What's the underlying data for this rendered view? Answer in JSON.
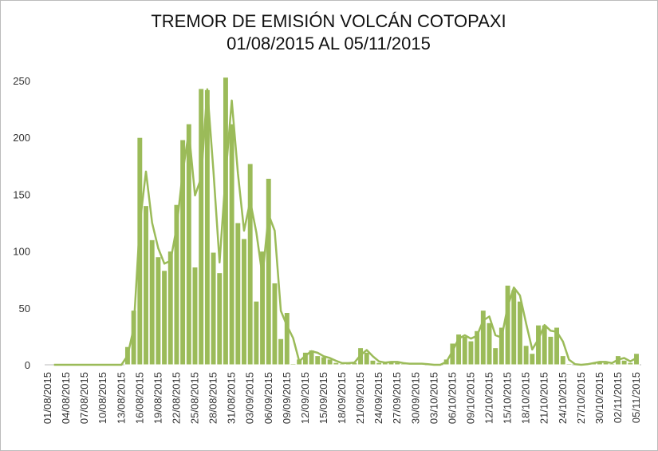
{
  "chart_data": {
    "type": "bar",
    "title": "TREMOR DE EMISIÓN VOLCÁN COTOPAXI",
    "subtitle": "01/08/2015 AL 05/11/2015",
    "categories": [
      "01/08/2015",
      null,
      null,
      "04/08/2015",
      null,
      null,
      "07/08/2015",
      null,
      null,
      "10/08/2015",
      null,
      null,
      "13/08/2015",
      null,
      null,
      "16/08/2015",
      null,
      null,
      "19/08/2015",
      null,
      null,
      "22/08/2015",
      null,
      null,
      "25/08/2015",
      null,
      null,
      "28/08/2015",
      null,
      null,
      "31/08/2015",
      null,
      null,
      "03/09/2015",
      null,
      null,
      "06/09/2015",
      null,
      null,
      "09/09/2015",
      null,
      null,
      "12/09/2015",
      null,
      null,
      "15/09/2015",
      null,
      null,
      "18/09/2015",
      null,
      null,
      "21/09/2015",
      null,
      null,
      "24/09/2015",
      null,
      null,
      "27/09/2015",
      null,
      null,
      "30/09/2015",
      null,
      null,
      "03/10/2015",
      null,
      null,
      "06/10/2015",
      null,
      null,
      "09/10/2015",
      null,
      null,
      "12/10/2015",
      null,
      null,
      "15/10/2015",
      null,
      null,
      "18/10/2015",
      null,
      null,
      "21/10/2015",
      null,
      null,
      "24/10/2015",
      null,
      null,
      "27/10/2015",
      null,
      null,
      "30/10/2015",
      null,
      null,
      "02/11/2015",
      null,
      null,
      "05/11/2015"
    ],
    "series": [
      {
        "type": "bar",
        "color": "#9bbb59",
        "values": [
          0,
          0,
          0,
          0,
          0,
          0,
          0,
          0,
          0,
          0,
          0,
          0,
          0,
          16,
          48,
          200,
          140,
          110,
          95,
          83,
          100,
          141,
          198,
          212,
          86,
          243,
          242,
          99,
          81,
          253,
          212,
          125,
          111,
          177,
          56,
          100,
          164,
          72,
          23,
          46,
          1,
          5,
          11,
          13,
          8,
          7,
          5,
          2,
          1,
          2,
          2,
          15,
          11,
          4,
          2,
          2,
          3,
          2,
          1,
          1,
          1,
          1,
          0,
          0,
          0,
          5,
          19,
          27,
          25,
          21,
          30,
          48,
          37,
          15,
          33,
          70,
          66,
          56,
          17,
          10,
          35,
          35,
          25,
          33,
          8,
          1,
          0,
          0,
          1,
          2,
          3,
          2,
          1,
          8,
          4,
          2,
          10
        ]
      },
      {
        "type": "line",
        "color": "#9bbb59",
        "values": [
          null,
          0,
          0,
          0,
          0,
          0,
          0,
          0,
          0,
          0,
          0,
          0,
          0,
          8,
          32,
          124,
          170,
          125,
          102.5,
          89,
          91.5,
          120.5,
          169.5,
          205,
          149,
          164.5,
          242.5,
          170.5,
          90,
          167,
          232.5,
          168.5,
          118,
          144,
          116.5,
          78,
          132,
          118,
          47.5,
          34.5,
          23.5,
          3,
          8,
          12,
          10.5,
          7.5,
          6,
          3.5,
          1.5,
          1.5,
          2,
          8.5,
          13,
          7.5,
          3,
          2,
          2.5,
          2.5,
          1.5,
          1,
          1,
          1,
          0.5,
          0,
          0,
          2.5,
          12,
          23,
          26,
          23,
          25.5,
          39,
          42.5,
          26,
          24,
          51.5,
          68,
          61,
          36.5,
          13.5,
          22.5,
          35,
          30,
          29,
          20.5,
          4.5,
          0.5,
          0,
          0.5,
          1.5,
          2.5,
          2.5,
          1.5,
          4.5,
          6,
          3,
          6
        ]
      }
    ],
    "ylim": [
      0,
      250
    ],
    "yticks": [
      0,
      50,
      100,
      150,
      200,
      250
    ],
    "grid": false
  }
}
